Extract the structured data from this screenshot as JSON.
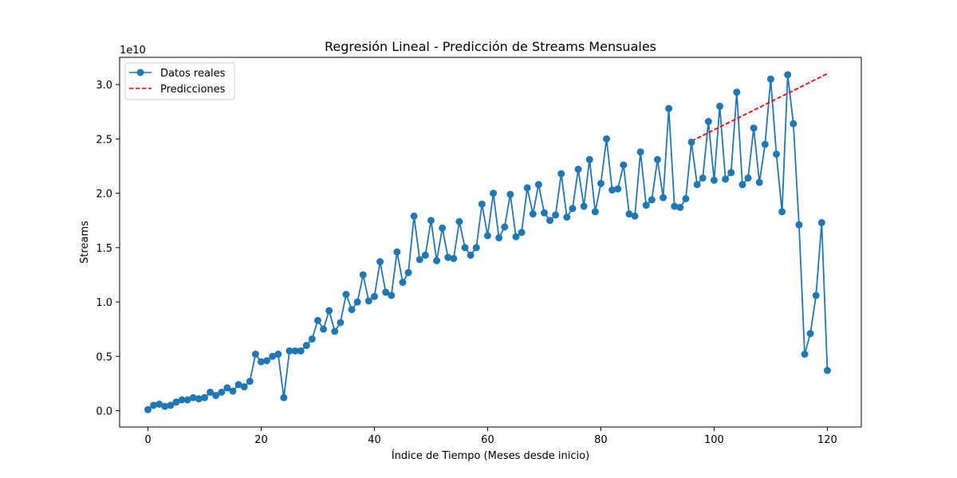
{
  "chart_data": {
    "type": "line",
    "title": "Regresión Lineal - Predicción de Streams Mensuales",
    "xlabel": "Índice de Tiempo (Meses desde inicio)",
    "ylabel": "Streams",
    "y_offset_text": "1e10",
    "xlim": [
      -5,
      126
    ],
    "ylim": [
      -0.15,
      3.25
    ],
    "y_multiplier": 10000000000,
    "x_ticks": [
      0,
      20,
      40,
      60,
      80,
      100,
      120
    ],
    "y_ticks": [
      0.0,
      0.5,
      1.0,
      1.5,
      2.0,
      2.5,
      3.0
    ],
    "y_tick_labels": [
      "0.0",
      "0.5",
      "1.0",
      "1.5",
      "2.0",
      "2.5",
      "3.0"
    ],
    "grid": false,
    "legend_position": "top-left",
    "series": [
      {
        "name": "Datos reales",
        "color": "#1f77b4",
        "style": "solid-line-with-circle-markers",
        "x": [
          0,
          1,
          2,
          3,
          4,
          5,
          6,
          7,
          8,
          9,
          10,
          11,
          12,
          13,
          14,
          15,
          16,
          17,
          18,
          19,
          20,
          21,
          22,
          23,
          24,
          25,
          26,
          27,
          28,
          29,
          30,
          31,
          32,
          33,
          34,
          35,
          36,
          37,
          38,
          39,
          40,
          41,
          42,
          43,
          44,
          45,
          46,
          47,
          48,
          49,
          50,
          51,
          52,
          53,
          54,
          55,
          56,
          57,
          58,
          59,
          60,
          61,
          62,
          63,
          64,
          65,
          66,
          67,
          68,
          69,
          70,
          71,
          72,
          73,
          74,
          75,
          76,
          77,
          78,
          79,
          80,
          81,
          82,
          83,
          84,
          85,
          86,
          87,
          88,
          89,
          90,
          91,
          92,
          93,
          94,
          95,
          96,
          97,
          98,
          99,
          100,
          101,
          102,
          103,
          104,
          105,
          106,
          107,
          108,
          109,
          110,
          111,
          112,
          113,
          114,
          115,
          116,
          117,
          118,
          119,
          120
        ],
        "y": [
          0.01,
          0.05,
          0.06,
          0.04,
          0.05,
          0.08,
          0.1,
          0.1,
          0.12,
          0.11,
          0.12,
          0.17,
          0.14,
          0.17,
          0.21,
          0.18,
          0.24,
          0.22,
          0.27,
          0.52,
          0.45,
          0.46,
          0.5,
          0.52,
          0.12,
          0.55,
          0.55,
          0.55,
          0.6,
          0.66,
          0.83,
          0.75,
          0.92,
          0.73,
          0.81,
          1.07,
          0.93,
          1.0,
          1.25,
          1.01,
          1.05,
          1.37,
          1.09,
          1.06,
          1.46,
          1.18,
          1.27,
          1.79,
          1.39,
          1.43,
          1.75,
          1.38,
          1.68,
          1.41,
          1.4,
          1.74,
          1.5,
          1.43,
          1.5,
          1.9,
          1.61,
          2.0,
          1.59,
          1.69,
          1.99,
          1.6,
          1.64,
          2.05,
          1.81,
          2.08,
          1.82,
          1.75,
          1.8,
          2.18,
          1.78,
          1.86,
          2.22,
          1.88,
          2.31,
          1.83,
          2.09,
          2.5,
          2.03,
          2.04,
          2.26,
          1.81,
          1.79,
          2.38,
          1.89,
          1.94,
          2.31,
          1.96,
          2.78,
          1.88,
          1.87,
          1.95,
          2.47,
          2.08,
          2.14,
          2.66,
          2.12,
          2.8,
          2.13,
          2.19,
          2.93,
          2.08,
          2.14,
          2.6,
          2.1,
          2.45,
          3.05,
          2.36,
          1.83,
          3.09,
          2.64,
          1.71,
          0.52,
          0.71,
          1.06,
          1.73,
          0.37
        ]
      },
      {
        "name": "Predicciones",
        "color": "#ff0000",
        "style": "dashed-line",
        "x": [
          96,
          120
        ],
        "y": [
          2.48,
          3.1
        ]
      }
    ]
  }
}
